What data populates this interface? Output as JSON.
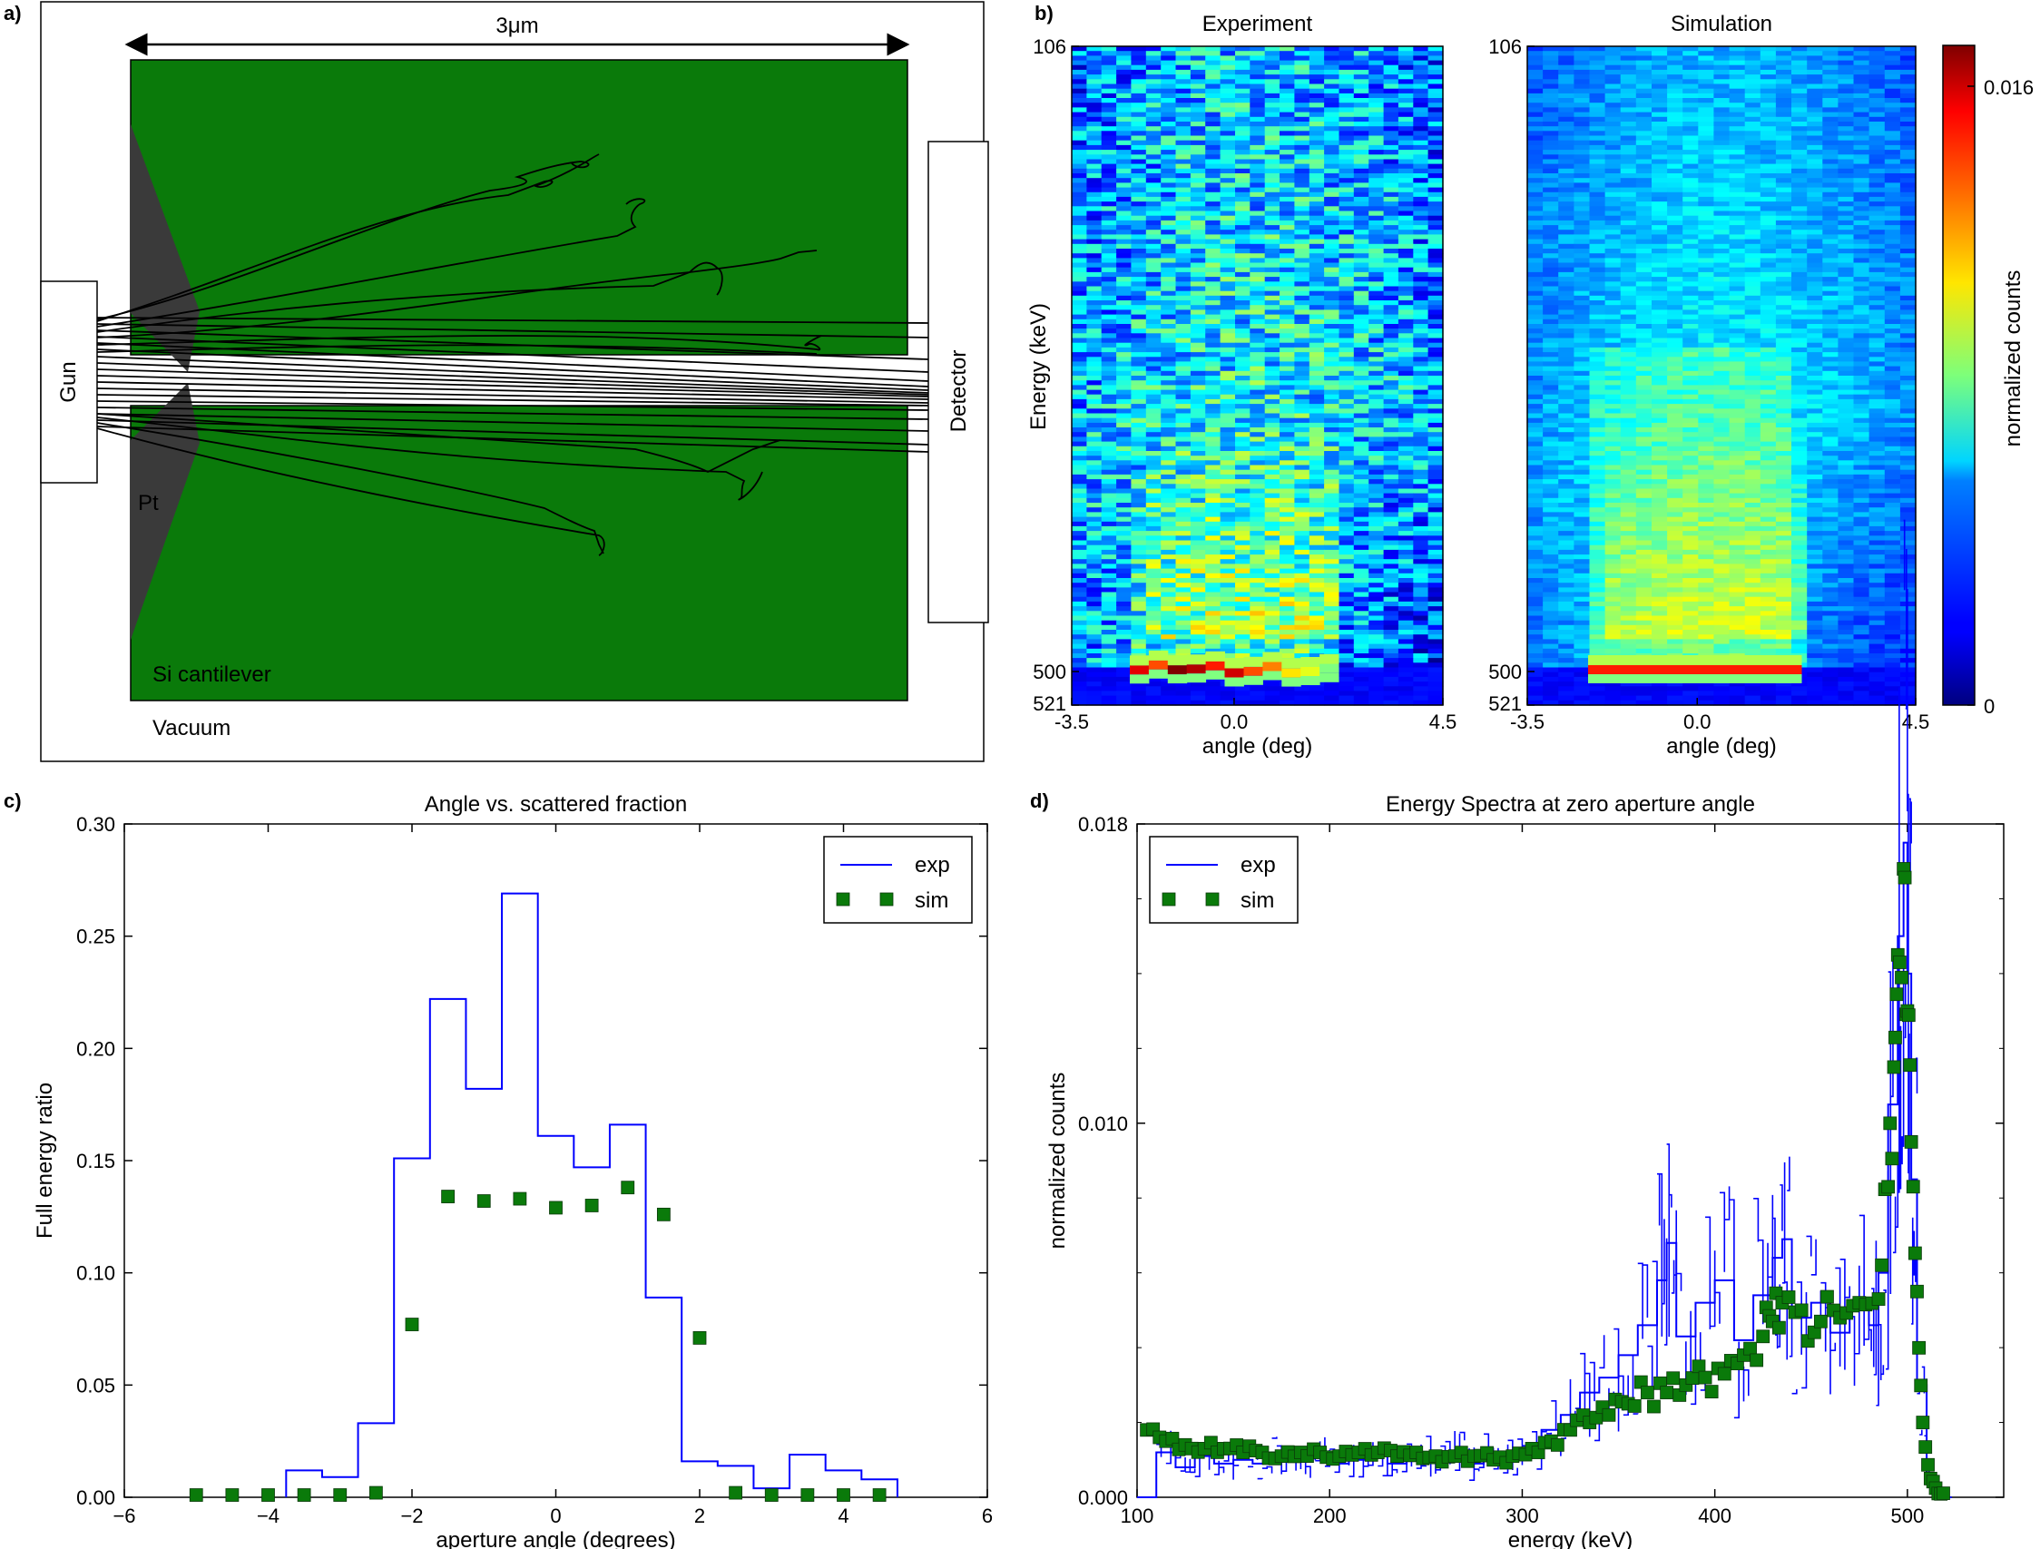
{
  "panels": {
    "a": {
      "label": "a)",
      "scale_label": "3μm",
      "gun_label": "Gun",
      "detector_label": "Detector",
      "pt_label": "Pt",
      "si_label": "Si cantilever",
      "vacuum_label": "Vacuum",
      "colors": {
        "silicon": "#0a7a0a",
        "platinum": "#3a3a3a",
        "border": "#000000"
      }
    },
    "b": {
      "label": "b)",
      "colorbar": {
        "label": "normalized counts",
        "ticks": [
          "0.016",
          "0"
        ],
        "colormap": "jet"
      }
    },
    "c": {
      "label": "c)"
    },
    "d": {
      "label": "d)"
    }
  },
  "chart_data": [
    {
      "id": "b-experiment",
      "type": "heatmap",
      "title": "Experiment",
      "xlabel": "angle (deg)",
      "ylabel": "Energy (keV)",
      "xticks": [
        "-3.5",
        "0.0",
        "4.5"
      ],
      "yticks": [
        "106",
        "500",
        "521"
      ],
      "xlim": [
        -3.5,
        4.5
      ],
      "ylim": [
        106,
        521
      ],
      "peak_energy": 500,
      "peak_angle_range": [
        -2.0,
        1.8
      ]
    },
    {
      "id": "b-simulation",
      "type": "heatmap",
      "title": "Simulation",
      "xlabel": "angle (deg)",
      "ylabel": "",
      "xticks": [
        "-3.5",
        "0.0",
        "4.5"
      ],
      "yticks": [
        "106",
        "500",
        "521"
      ],
      "xlim": [
        -3.5,
        4.5
      ],
      "ylim": [
        106,
        521
      ],
      "peak_energy": 500,
      "peak_angle_range": [
        -1.8,
        1.8
      ]
    },
    {
      "id": "c",
      "type": "line",
      "title": "Angle vs. scattered fraction",
      "xlabel": "aperture angle (degrees)",
      "ylabel": "Full energy ratio",
      "xlim": [
        -6,
        6
      ],
      "ylim": [
        0,
        0.3
      ],
      "xticks": [
        "−6",
        "−4",
        "−2",
        "0",
        "2",
        "4",
        "6"
      ],
      "yticks": [
        "0.00",
        "0.05",
        "0.10",
        "0.15",
        "0.20",
        "0.25",
        "0.30"
      ],
      "legend": {
        "position": "top-right",
        "entries": [
          "exp",
          "sim"
        ]
      },
      "series": [
        {
          "name": "exp",
          "style": "steps",
          "color": "#0000ff",
          "edges": [
            -3.75,
            -3.25,
            -2.75,
            -2.25,
            -1.75,
            -1.25,
            -0.75,
            -0.25,
            0.25,
            0.75,
            1.25,
            1.75,
            2.25,
            2.75,
            3.25,
            3.75,
            4.25,
            4.75
          ],
          "values": [
            0.012,
            0.009,
            0.033,
            0.151,
            0.222,
            0.182,
            0.269,
            0.161,
            0.147,
            0.166,
            0.089,
            0.016,
            0.014,
            0.004,
            0.019,
            0.012,
            0.008
          ]
        },
        {
          "name": "sim",
          "style": "markers",
          "color": "#0a7a0a",
          "x": [
            -5,
            -4.5,
            -4,
            -3.5,
            -3,
            -2.5,
            -2,
            -1.5,
            -1,
            -0.5,
            0,
            0.5,
            1,
            1.5,
            2,
            2.5,
            3,
            3.5,
            4,
            4.5
          ],
          "values": [
            0.001,
            0.001,
            0.001,
            0.001,
            0.001,
            0.002,
            0.077,
            0.134,
            0.132,
            0.133,
            0.129,
            0.13,
            0.138,
            0.126,
            0.071,
            0.002,
            0.001,
            0.001,
            0.001,
            0.001
          ]
        }
      ]
    },
    {
      "id": "d",
      "type": "line",
      "title": "Energy Spectra at zero aperture angle",
      "xlabel": "energy (keV)",
      "ylabel": "normalized counts",
      "xlim": [
        100,
        550
      ],
      "ylim": [
        0,
        0.018
      ],
      "xticks": [
        "100",
        "200",
        "300",
        "400",
        "500"
      ],
      "yticks": [
        "0.000",
        "0.010",
        "0.018"
      ],
      "legend": {
        "position": "top-left",
        "entries": [
          "exp",
          "sim"
        ]
      },
      "series": [
        {
          "name": "exp",
          "style": "steps",
          "color": "#0000ff",
          "x": [
            100,
            110,
            120,
            130,
            140,
            150,
            160,
            170,
            180,
            190,
            200,
            210,
            220,
            230,
            240,
            250,
            260,
            270,
            280,
            290,
            300,
            310,
            320,
            330,
            340,
            350,
            360,
            370,
            375,
            380,
            390,
            400,
            410,
            420,
            430,
            435,
            440,
            450,
            460,
            470,
            480,
            485,
            490,
            495,
            498,
            500,
            502,
            505,
            510,
            515,
            520
          ],
          "values": [
            0.0,
            0.0012,
            0.0008,
            0.0011,
            0.0009,
            0.001,
            0.0009,
            0.0012,
            0.001,
            0.0011,
            0.0009,
            0.001,
            0.0011,
            0.0009,
            0.001,
            0.0011,
            0.0012,
            0.0009,
            0.0012,
            0.0011,
            0.0013,
            0.0018,
            0.0022,
            0.0028,
            0.0032,
            0.0038,
            0.0046,
            0.0058,
            0.0068,
            0.0043,
            0.0052,
            0.0058,
            0.0042,
            0.0054,
            0.0064,
            0.0069,
            0.0048,
            0.0052,
            0.0044,
            0.0051,
            0.0046,
            0.006,
            0.0105,
            0.015,
            0.0175,
            0.014,
            0.0085,
            0.003,
            0.0005,
            0.0001,
            0.0
          ]
        },
        {
          "name": "sim",
          "style": "markers",
          "color": "#0a7a0a",
          "x": [
            105,
            115,
            125,
            135,
            145,
            155,
            165,
            175,
            185,
            195,
            205,
            215,
            225,
            235,
            245,
            255,
            265,
            275,
            285,
            295,
            305,
            315,
            325,
            335,
            345,
            355,
            365,
            375,
            385,
            395,
            405,
            415,
            425,
            430,
            435,
            445,
            455,
            465,
            475,
            485,
            490,
            493,
            495,
            498,
            500,
            502,
            505,
            508,
            512,
            516
          ],
          "values": [
            0.0018,
            0.0015,
            0.0014,
            0.0013,
            0.0013,
            0.0012,
            0.0012,
            0.0011,
            0.0012,
            0.0012,
            0.0011,
            0.0012,
            0.0012,
            0.0011,
            0.0012,
            0.0011,
            0.0011,
            0.0011,
            0.001,
            0.0011,
            0.0013,
            0.0015,
            0.0018,
            0.002,
            0.0022,
            0.0025,
            0.0028,
            0.0028,
            0.003,
            0.0032,
            0.0033,
            0.0038,
            0.0043,
            0.0047,
            0.0052,
            0.005,
            0.0047,
            0.0048,
            0.0052,
            0.0053,
            0.0083,
            0.0115,
            0.0145,
            0.0168,
            0.013,
            0.0095,
            0.0055,
            0.002,
            0.0005,
            0.0001
          ]
        }
      ]
    }
  ]
}
